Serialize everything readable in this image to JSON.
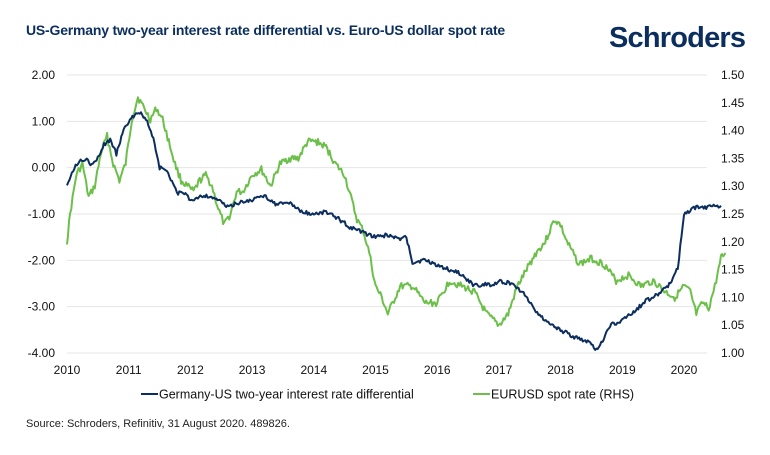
{
  "header": {
    "title": "US-Germany two-year interest rate differential vs. Euro-US dollar spot rate",
    "logo": "Schroders"
  },
  "footer": {
    "source": "Source: Schroders, Refinitiv, 31 August 2020. 489826."
  },
  "colors": {
    "brand": "#0b2e5e",
    "series_differential": "#0b2e5e",
    "series_eurusd": "#6cc04a",
    "grid": "#e6e6e6"
  },
  "chart_data": {
    "type": "line",
    "title": "US-Germany two-year interest rate differential vs. Euro-US dollar spot rate",
    "xlabel": "",
    "ylabel": "",
    "x_ticks": [
      "2010",
      "2011",
      "2012",
      "2013",
      "2014",
      "2015",
      "2016",
      "2017",
      "2018",
      "2019",
      "2020"
    ],
    "xlim": [
      2010.0,
      2020.67
    ],
    "y_left": {
      "ticks": [
        "2.00",
        "1.00",
        "0.00",
        "-1.00",
        "-2.00",
        "-3.00",
        "-4.00"
      ],
      "ylim": [
        -4.0,
        2.0
      ]
    },
    "y_right": {
      "ticks": [
        "1.50",
        "1.45",
        "1.40",
        "1.35",
        "1.30",
        "1.25",
        "1.20",
        "1.15",
        "1.10",
        "1.05",
        "1.00"
      ],
      "ylim": [
        1.0,
        1.5
      ]
    },
    "grid": true,
    "legend_position": "bottom",
    "series": [
      {
        "name": "Germany-US two-year interest rate differential",
        "axis": "left",
        "x": [
          2010.0,
          2010.08,
          2010.2,
          2010.3,
          2010.4,
          2010.5,
          2010.6,
          2010.7,
          2010.8,
          2010.9,
          2011.0,
          2011.1,
          2011.2,
          2011.3,
          2011.4,
          2011.5,
          2011.6,
          2011.7,
          2011.8,
          2011.9,
          2012.0,
          2012.2,
          2012.4,
          2012.6,
          2012.8,
          2013.0,
          2013.2,
          2013.4,
          2013.6,
          2013.8,
          2014.0,
          2014.2,
          2014.4,
          2014.6,
          2014.8,
          2015.0,
          2015.2,
          2015.4,
          2015.5,
          2015.6,
          2015.8,
          2016.0,
          2016.2,
          2016.4,
          2016.6,
          2016.8,
          2016.9,
          2017.0,
          2017.2,
          2017.4,
          2017.6,
          2017.8,
          2018.0,
          2018.2,
          2018.4,
          2018.5,
          2018.6,
          2018.8,
          2019.0,
          2019.2,
          2019.4,
          2019.5,
          2019.6,
          2019.7,
          2019.8,
          2019.9,
          2020.0,
          2020.2,
          2020.4,
          2020.6
        ],
        "values": [
          -0.35,
          -0.1,
          0.15,
          0.2,
          0.05,
          0.2,
          0.5,
          0.6,
          0.3,
          0.75,
          1.0,
          1.15,
          1.2,
          1.0,
          0.6,
          0.0,
          -0.05,
          -0.3,
          -0.55,
          -0.55,
          -0.7,
          -0.6,
          -0.65,
          -0.85,
          -0.75,
          -0.7,
          -0.6,
          -0.8,
          -0.75,
          -0.95,
          -1.0,
          -0.95,
          -1.1,
          -1.3,
          -1.4,
          -1.5,
          -1.45,
          -1.55,
          -1.5,
          -2.05,
          -2.0,
          -2.1,
          -2.2,
          -2.3,
          -2.55,
          -2.5,
          -2.55,
          -2.45,
          -2.5,
          -2.7,
          -3.1,
          -3.35,
          -3.5,
          -3.65,
          -3.75,
          -3.8,
          -3.95,
          -3.4,
          -3.3,
          -3.1,
          -2.85,
          -2.8,
          -2.7,
          -2.6,
          -2.45,
          -2.15,
          -1.0,
          -0.85,
          -0.85,
          -0.82
        ]
      },
      {
        "name": "EURUSD spot rate (RHS)",
        "axis": "right",
        "x": [
          2010.0,
          2010.05,
          2010.15,
          2010.25,
          2010.35,
          2010.45,
          2010.55,
          2010.65,
          2010.75,
          2010.85,
          2010.95,
          2011.05,
          2011.15,
          2011.25,
          2011.35,
          2011.45,
          2011.55,
          2011.65,
          2011.75,
          2011.85,
          2011.95,
          2012.05,
          2012.15,
          2012.25,
          2012.35,
          2012.45,
          2012.55,
          2012.65,
          2012.75,
          2012.85,
          2013.0,
          2013.15,
          2013.3,
          2013.45,
          2013.6,
          2013.75,
          2013.9,
          2014.05,
          2014.2,
          2014.35,
          2014.5,
          2014.6,
          2014.7,
          2014.8,
          2014.9,
          2015.0,
          2015.1,
          2015.2,
          2015.4,
          2015.6,
          2015.8,
          2016.0,
          2016.2,
          2016.4,
          2016.6,
          2016.8,
          2017.0,
          2017.15,
          2017.3,
          2017.45,
          2017.6,
          2017.75,
          2017.9,
          2018.0,
          2018.1,
          2018.3,
          2018.5,
          2018.7,
          2018.9,
          2019.1,
          2019.3,
          2019.5,
          2019.7,
          2019.85,
          2020.0,
          2020.1,
          2020.2,
          2020.3,
          2020.4,
          2020.5,
          2020.6,
          2020.67
        ],
        "values": [
          1.2,
          1.25,
          1.32,
          1.34,
          1.28,
          1.3,
          1.36,
          1.39,
          1.34,
          1.31,
          1.34,
          1.42,
          1.46,
          1.44,
          1.42,
          1.44,
          1.42,
          1.38,
          1.34,
          1.31,
          1.3,
          1.29,
          1.31,
          1.32,
          1.3,
          1.26,
          1.23,
          1.25,
          1.29,
          1.29,
          1.32,
          1.33,
          1.3,
          1.34,
          1.35,
          1.35,
          1.38,
          1.38,
          1.37,
          1.34,
          1.32,
          1.28,
          1.24,
          1.22,
          1.18,
          1.12,
          1.1,
          1.07,
          1.12,
          1.12,
          1.09,
          1.09,
          1.13,
          1.12,
          1.11,
          1.07,
          1.05,
          1.07,
          1.12,
          1.15,
          1.18,
          1.2,
          1.24,
          1.23,
          1.2,
          1.16,
          1.17,
          1.16,
          1.13,
          1.14,
          1.12,
          1.13,
          1.11,
          1.1,
          1.12,
          1.11,
          1.07,
          1.09,
          1.08,
          1.12,
          1.17,
          1.18
        ]
      }
    ]
  }
}
